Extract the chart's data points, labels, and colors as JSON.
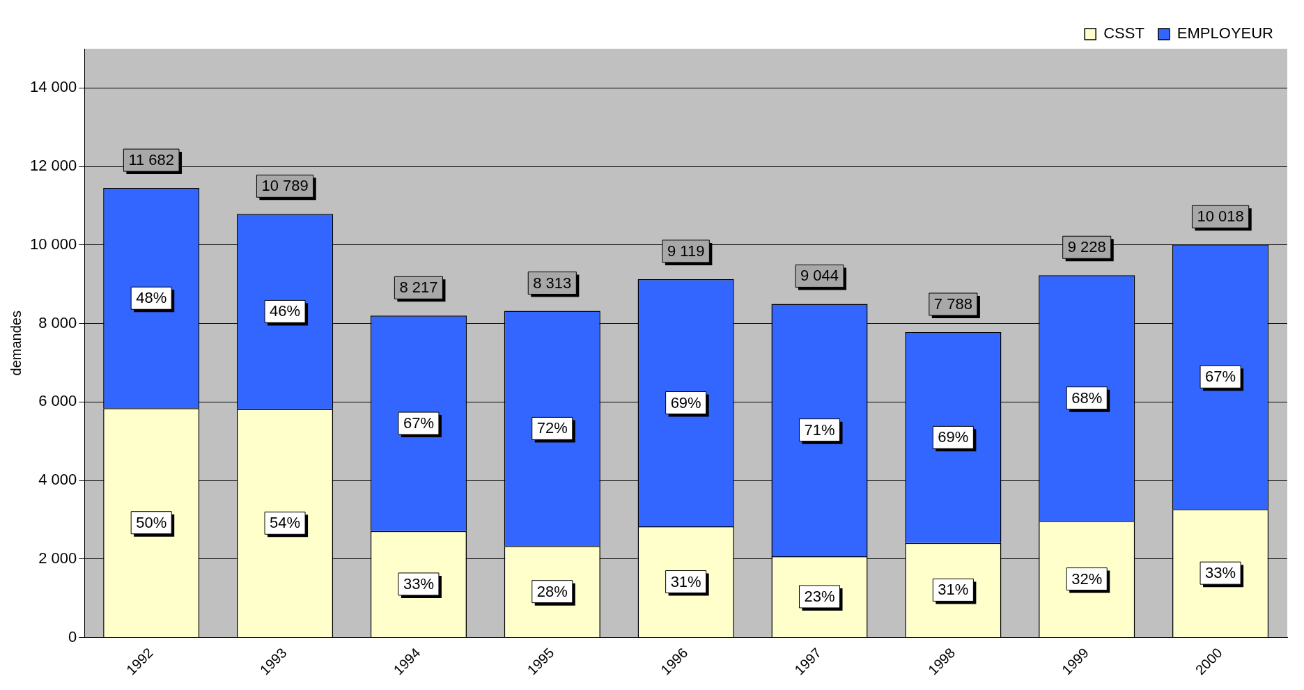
{
  "chart_data": {
    "type": "bar",
    "stacked": true,
    "ylabel": "demandes",
    "categories": [
      "1992",
      "1993",
      "1994",
      "1995",
      "1996",
      "1997",
      "1998",
      "1999",
      "2000"
    ],
    "series": [
      {
        "name": "CSST",
        "color": "#ffffcc",
        "values": [
          5840,
          5820,
          2710,
          2330,
          2830,
          2070,
          2410,
          2970,
          3270
        ]
      },
      {
        "name": "EMPLOYEUR",
        "color": "#3366ff",
        "values": [
          5610,
          4970,
          5490,
          5990,
          6300,
          6430,
          5370,
          6260,
          6740
        ]
      }
    ],
    "annotations": [
      "11 682",
      "10 789",
      "8 217",
      "8 313",
      "9 119",
      "9 044",
      "7 788",
      "9 228",
      "10 018",
      "50%",
      "48%",
      "54%",
      "46%",
      "33%",
      "67%",
      "28%",
      "72%",
      "31%",
      "69%",
      "23%",
      "71%",
      "31%",
      "69%",
      "32%",
      "68%",
      "33%",
      "67%"
    ],
    "ylim": [
      0,
      15000
    ],
    "yticks": [
      {
        "value": 0,
        "label": "0"
      },
      {
        "value": 2000,
        "label": "2 000"
      },
      {
        "value": 4000,
        "label": "4 000"
      },
      {
        "value": 6000,
        "label": "6 000"
      },
      {
        "value": 8000,
        "label": "8 000"
      },
      {
        "value": 10000,
        "label": "10 000"
      },
      {
        "value": 12000,
        "label": "12 000"
      },
      {
        "value": 14000,
        "label": "14 000"
      }
    ],
    "grid": "y",
    "legend": "top right"
  }
}
